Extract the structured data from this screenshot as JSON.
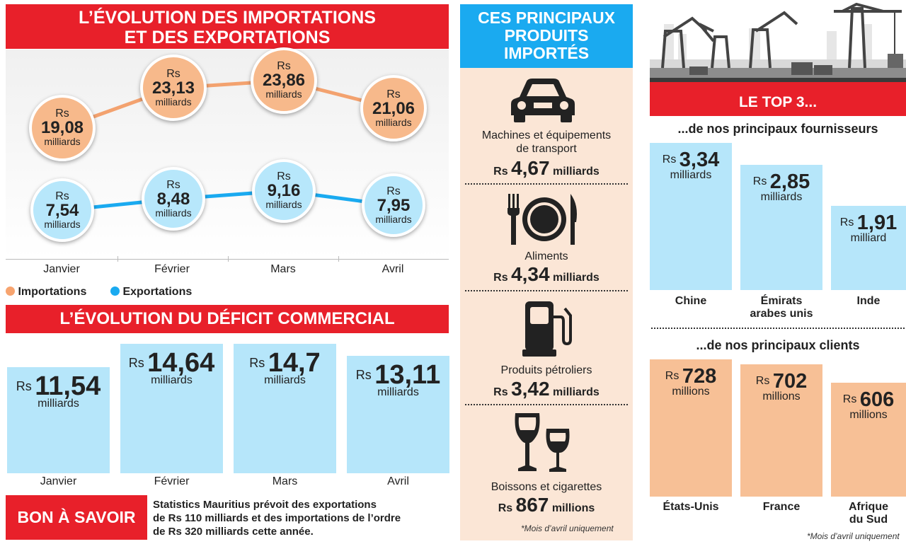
{
  "trade": {
    "title_line1": "L’ÉVOLUTION DES IMPORTATIONS",
    "title_line2": "ET DES EXPORTATIONS",
    "months": [
      "Janvier",
      "Février",
      "Mars",
      "Avril"
    ],
    "currency": "Rs",
    "unit": "milliards",
    "legend_imports": "Importations",
    "legend_exports": "Exportations",
    "color_imports": "#f7b98b",
    "color_exports": "#b7e7fb"
  },
  "deficit": {
    "title": "L’ÉVOLUTION DU DÉFICIT COMMERCIAL",
    "unit": "milliards",
    "currency": "Rs"
  },
  "products": {
    "title_line1": "CES PRINCIPAUX",
    "title_line2": "PRODUITS",
    "title_line3": "IMPORTÉS",
    "items": [
      {
        "name_line1": "Machines et équipements",
        "name_line2": "de transport",
        "currency": "Rs",
        "value": "4,67",
        "unit": "milliards",
        "icon": "car-icon"
      },
      {
        "name_line1": "Aliments",
        "currency": "Rs",
        "value": "4,34",
        "unit": "milliards",
        "icon": "plate-cutlery-icon"
      },
      {
        "name_line1": "Produits pétroliers",
        "currency": "Rs",
        "value": "3,42",
        "unit": "milliards",
        "icon": "fuel-pump-icon"
      },
      {
        "name_line1": "Boissons et cigarettes",
        "currency": "Rs",
        "value": "867",
        "unit": "millions",
        "icon": "wine-glasses-icon"
      }
    ],
    "note": "*Mois d’avril uniquement"
  },
  "top3": {
    "title": "LE TOP 3...",
    "suppliers_title": "...de nos principaux fournisseurs",
    "clients_title": "...de nos principaux clients",
    "note": "*Mois d’avril uniquement",
    "color_suppliers": "#b6e6fa",
    "color_clients": "#f7c096"
  },
  "bon": {
    "label": "BON À SAVOIR",
    "line1": "Statistics Mauritius prévoit des exportations",
    "line2": "de Rs 110 milliards et des importations de l’ordre",
    "line3": "de Rs 320 milliards cette année."
  },
  "chart_data": [
    {
      "type": "line",
      "title": "L’ÉVOLUTION DES IMPORTATIONS ET DES EXPORTATIONS",
      "categories": [
        "Janvier",
        "Février",
        "Mars",
        "Avril"
      ],
      "series": [
        {
          "name": "Importations",
          "values": [
            19.08,
            23.13,
            23.86,
            21.06
          ],
          "labels": [
            "19,08",
            "23,13",
            "23,86",
            "21,06"
          ]
        },
        {
          "name": "Exportations",
          "values": [
            7.54,
            8.48,
            9.16,
            7.95
          ],
          "labels": [
            "7,54",
            "8,48",
            "9,16",
            "7,95"
          ]
        }
      ],
      "unit": "Rs milliards",
      "legend": "bottom-left"
    },
    {
      "type": "bar",
      "title": "L’ÉVOLUTION DU DÉFICIT COMMERCIAL",
      "categories": [
        "Janvier",
        "Février",
        "Mars",
        "Avril"
      ],
      "values": [
        11.54,
        14.64,
        14.7,
        13.11
      ],
      "labels": [
        "11,54",
        "14,64",
        "14,7",
        "13,11"
      ],
      "unit": "Rs milliards"
    },
    {
      "type": "bar",
      "title": "...de nos principaux fournisseurs",
      "categories": [
        [
          "Chine"
        ],
        [
          "Émirats",
          "arabes unis"
        ],
        [
          "Inde"
        ]
      ],
      "values": [
        3.34,
        2.85,
        1.91
      ],
      "labels": [
        "3,34",
        "2,85",
        "1,91"
      ],
      "units": [
        "milliards",
        "milliards",
        "milliard"
      ]
    },
    {
      "type": "bar",
      "title": "...de nos principaux clients",
      "categories": [
        [
          "États-Unis"
        ],
        [
          "France"
        ],
        [
          "Afrique",
          "du Sud"
        ]
      ],
      "values": [
        728,
        702,
        606
      ],
      "labels": [
        "728",
        "702",
        "606"
      ],
      "units": [
        "millions",
        "millions",
        "millions"
      ]
    }
  ]
}
